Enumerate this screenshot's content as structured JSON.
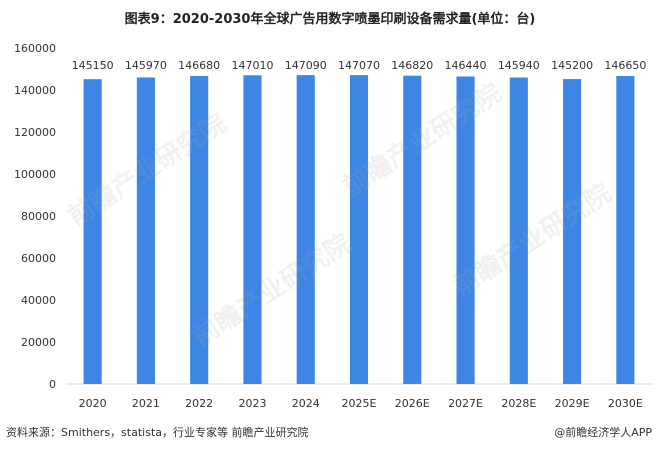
{
  "title": "图表9：2020-2030年全球广告用数字喷墨印刷设备需求量(单位：台)",
  "source": "资料来源：Smithers，statista，行业专家等 前瞻产业研究院",
  "credit": "@前瞻经济学人APP",
  "watermark": "前瞻产业研究院",
  "colors": {
    "bar": "#3d86e6",
    "axis": "#d9d9d9",
    "text": "#333333"
  },
  "chart_data": {
    "type": "bar",
    "title": "图表9：2020-2030年全球广告用数字喷墨印刷设备需求量(单位：台)",
    "categories": [
      "2020",
      "2021",
      "2022",
      "2023",
      "2024",
      "2025E",
      "2026E",
      "2027E",
      "2028E",
      "2029E",
      "2030E"
    ],
    "values": [
      145150,
      145970,
      146680,
      147010,
      147090,
      147070,
      146820,
      146440,
      145940,
      145200,
      146650
    ],
    "data_labels": [
      "145150",
      "145970",
      "146680",
      "147010",
      "147090",
      "147070",
      "146820",
      "146440",
      "145940",
      "145200",
      "146650"
    ],
    "ylim": [
      0,
      160000
    ],
    "yticks": [
      "0",
      "20000",
      "40000",
      "60000",
      "80000",
      "100000",
      "120000",
      "140000",
      "160000"
    ],
    "ytick_values": [
      0,
      20000,
      40000,
      60000,
      80000,
      100000,
      120000,
      140000,
      160000
    ],
    "xlabel": "",
    "ylabel": "",
    "grid": false,
    "legend": "none"
  }
}
